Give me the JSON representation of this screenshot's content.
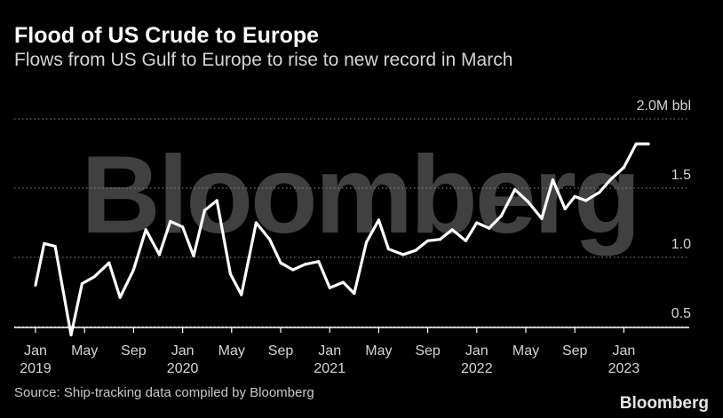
{
  "header": {
    "title": "Flood of US Crude to Europe",
    "subtitle": "Flows from US Gulf to Europe to rise to new record in March"
  },
  "footer": {
    "source": "Source: Ship-tracking data compiled by Bloomberg",
    "brand": "Bloomberg"
  },
  "watermark": {
    "text": "Bloomberg"
  },
  "chart_data": {
    "type": "line",
    "title": "Flood of US Crude to Europe",
    "subtitle": "Flows from US Gulf to Europe to rise to new record in March",
    "unit": "M bbl",
    "ylim": [
      0.4,
      2.0
    ],
    "yticks": [
      {
        "value": 2.0,
        "label": "2.0M bbl"
      },
      {
        "value": 1.5,
        "label": "1.5"
      },
      {
        "value": 1.0,
        "label": "1.0"
      },
      {
        "value": 0.5,
        "label": "0.5"
      }
    ],
    "xticks": [
      {
        "month": 0,
        "label": "Jan",
        "year": "2019"
      },
      {
        "month": 4,
        "label": "May",
        "year": ""
      },
      {
        "month": 8,
        "label": "Sep",
        "year": ""
      },
      {
        "month": 12,
        "label": "Jan",
        "year": "2020"
      },
      {
        "month": 16,
        "label": "May",
        "year": ""
      },
      {
        "month": 20,
        "label": "Sep",
        "year": ""
      },
      {
        "month": 24,
        "label": "Jan",
        "year": "2021"
      },
      {
        "month": 28,
        "label": "May",
        "year": ""
      },
      {
        "month": 32,
        "label": "Sep",
        "year": ""
      },
      {
        "month": 36,
        "label": "Jan",
        "year": "2022"
      },
      {
        "month": 40,
        "label": "May",
        "year": ""
      },
      {
        "month": 44,
        "label": "Sep",
        "year": ""
      },
      {
        "month": 48,
        "label": "Jan",
        "year": "2023"
      }
    ],
    "grid": true,
    "line_color": "#ffffff",
    "series": [
      {
        "x": [
          0,
          0.7,
          1.6,
          2.9,
          3.8,
          4.8,
          6.0,
          6.9,
          8.0,
          9.0,
          10.1,
          11.0,
          12.0,
          12.9,
          13.8,
          14.8,
          15.9,
          16.8,
          18.0,
          19.1,
          20.0,
          21.0,
          22.0,
          23.1,
          24.0,
          25.1,
          26.0,
          27.0,
          28.0,
          28.8,
          30.0,
          31.0,
          32.0,
          33.0,
          34.0,
          35.1,
          36.0,
          37.0,
          38.0,
          39.1,
          40.2,
          41.3,
          42.2,
          43.2,
          44.0,
          44.9,
          46.0,
          46.9,
          48.0,
          49.0,
          50.0
        ],
        "y": [
          0.8,
          1.1,
          1.08,
          0.44,
          0.81,
          0.86,
          0.96,
          0.71,
          0.91,
          1.2,
          1.02,
          1.26,
          1.22,
          1.01,
          1.34,
          1.41,
          0.88,
          0.73,
          1.25,
          1.13,
          0.96,
          0.91,
          0.95,
          0.97,
          0.78,
          0.82,
          0.74,
          1.11,
          1.27,
          1.06,
          1.02,
          1.05,
          1.12,
          1.13,
          1.2,
          1.12,
          1.25,
          1.21,
          1.3,
          1.49,
          1.4,
          1.28,
          1.56,
          1.35,
          1.44,
          1.41,
          1.47,
          1.56,
          1.65,
          1.82,
          1.82
        ]
      }
    ]
  }
}
